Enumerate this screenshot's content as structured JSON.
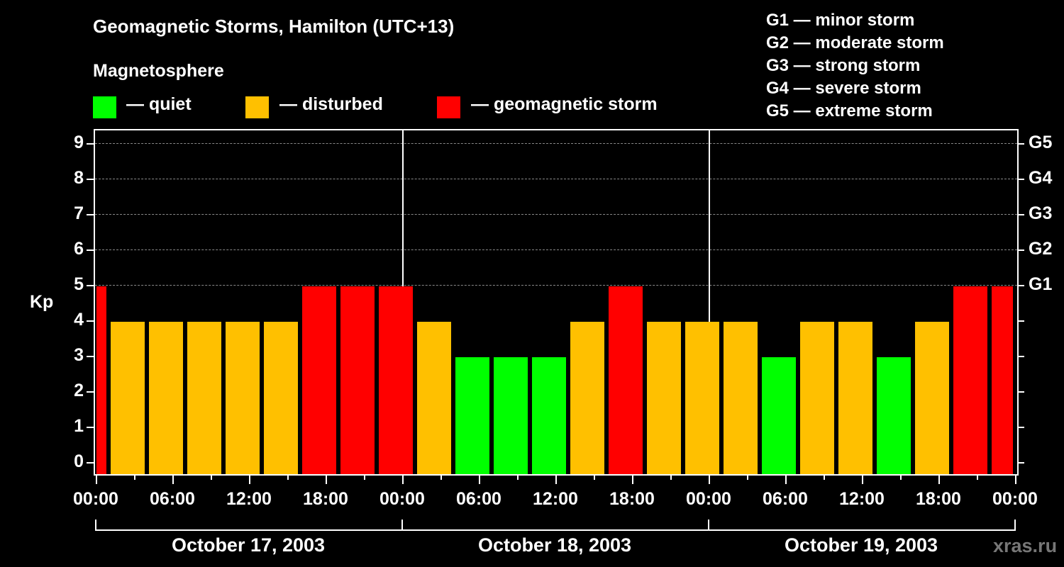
{
  "header": {
    "title": "Geomagnetic Storms, Hamilton (UTC+13)",
    "subtitle": "Magnetosphere"
  },
  "legend": {
    "items": [
      {
        "label": "— quiet",
        "color": "#00ff00"
      },
      {
        "label": "— disturbed",
        "color": "#ffc000"
      },
      {
        "label": "— geomagnetic storm",
        "color": "#ff0000"
      }
    ]
  },
  "g_scale_legend": [
    "G1 — minor storm",
    "G2 — moderate storm",
    "G3 — strong storm",
    "G4 — severe storm",
    "G5 — extreme storm"
  ],
  "axes": {
    "y_label": "Kp",
    "y_ticks": [
      "0",
      "1",
      "2",
      "3",
      "4",
      "5",
      "6",
      "7",
      "8",
      "9"
    ],
    "y_right_ticks": [
      "G1",
      "G2",
      "G3",
      "G4",
      "G5"
    ],
    "x_ticks": [
      "00:00",
      "06:00",
      "12:00",
      "18:00",
      "00:00",
      "06:00",
      "12:00",
      "18:00",
      "00:00",
      "06:00",
      "12:00",
      "18:00",
      "00:00"
    ],
    "days": [
      "October 17, 2003",
      "October 18, 2003",
      "October 19, 2003"
    ]
  },
  "watermark": "xras.ru",
  "colors": {
    "quiet": "#00ff00",
    "disturbed": "#ffc000",
    "storm": "#ff0000",
    "background": "#000000",
    "grid": "#888888"
  },
  "chart_data": {
    "type": "bar",
    "title": "Geomagnetic Storms, Hamilton (UTC+13)",
    "subtitle": "Magnetosphere",
    "xlabel": "",
    "ylabel": "Kp",
    "ylim": [
      0,
      9
    ],
    "y2_labels": {
      "5": "G1",
      "6": "G2",
      "7": "G3",
      "8": "G4",
      "9": "G5"
    },
    "grid": "dashed horizontal at 5-9",
    "x_range": [
      "2003-10-17 00:00",
      "2003-10-20 00:00"
    ],
    "interval_hours": 3,
    "bars": [
      {
        "start": "Oct 16 23:00",
        "kp": 5,
        "status": "storm",
        "partial": true
      },
      {
        "start": "Oct 17 02:00",
        "kp": 4,
        "status": "disturbed"
      },
      {
        "start": "Oct 17 05:00",
        "kp": 4,
        "status": "disturbed"
      },
      {
        "start": "Oct 17 08:00",
        "kp": 4,
        "status": "disturbed"
      },
      {
        "start": "Oct 17 11:00",
        "kp": 4,
        "status": "disturbed"
      },
      {
        "start": "Oct 17 14:00",
        "kp": 4,
        "status": "disturbed"
      },
      {
        "start": "Oct 17 17:00",
        "kp": 5,
        "status": "storm"
      },
      {
        "start": "Oct 17 20:00",
        "kp": 5,
        "status": "storm"
      },
      {
        "start": "Oct 17 23:00",
        "kp": 5,
        "status": "storm"
      },
      {
        "start": "Oct 18 02:00",
        "kp": 4,
        "status": "disturbed"
      },
      {
        "start": "Oct 18 05:00",
        "kp": 3,
        "status": "quiet"
      },
      {
        "start": "Oct 18 08:00",
        "kp": 3,
        "status": "quiet"
      },
      {
        "start": "Oct 18 11:00",
        "kp": 3,
        "status": "quiet"
      },
      {
        "start": "Oct 18 14:00",
        "kp": 4,
        "status": "disturbed"
      },
      {
        "start": "Oct 18 17:00",
        "kp": 5,
        "status": "storm"
      },
      {
        "start": "Oct 18 20:00",
        "kp": 4,
        "status": "disturbed"
      },
      {
        "start": "Oct 18 23:00",
        "kp": 4,
        "status": "disturbed"
      },
      {
        "start": "Oct 19 02:00",
        "kp": 4,
        "status": "disturbed"
      },
      {
        "start": "Oct 19 05:00",
        "kp": 3,
        "status": "quiet"
      },
      {
        "start": "Oct 19 08:00",
        "kp": 4,
        "status": "disturbed"
      },
      {
        "start": "Oct 19 11:00",
        "kp": 4,
        "status": "disturbed"
      },
      {
        "start": "Oct 19 14:00",
        "kp": 3,
        "status": "quiet"
      },
      {
        "start": "Oct 19 17:00",
        "kp": 4,
        "status": "disturbed"
      },
      {
        "start": "Oct 19 20:00",
        "kp": 5,
        "status": "storm"
      },
      {
        "start": "Oct 19 23:00",
        "kp": 5,
        "status": "storm",
        "partial": true
      }
    ],
    "values": [
      5,
      4,
      4,
      4,
      4,
      4,
      5,
      5,
      5,
      4,
      3,
      3,
      3,
      4,
      5,
      4,
      4,
      4,
      3,
      4,
      4,
      3,
      4,
      5,
      5
    ],
    "legend": [
      "quiet",
      "disturbed",
      "geomagnetic storm"
    ],
    "legend_position": "top"
  }
}
